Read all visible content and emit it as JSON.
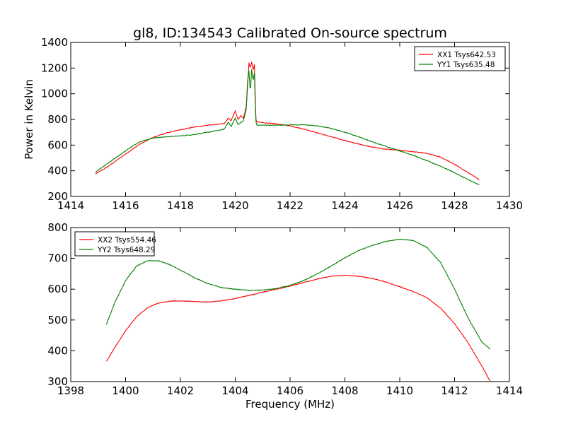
{
  "figure": {
    "title": "gl8, ID:134543 Calibrated On-source spectrum"
  },
  "chart_data": [
    {
      "type": "line",
      "title": "gl8, ID:134543 Calibrated On-source spectrum",
      "xlabel": "",
      "ylabel": "Power in Kelvin",
      "xlim": [
        1414,
        1430
      ],
      "ylim": [
        200,
        1400
      ],
      "xticks": [
        1414,
        1416,
        1418,
        1420,
        1422,
        1424,
        1426,
        1428,
        1430
      ],
      "yticks": [
        200,
        400,
        600,
        800,
        1000,
        1200,
        1400
      ],
      "grid": false,
      "legend_position": "top-right",
      "series": [
        {
          "name": "XX1 Tsys642.53",
          "color": "#ff0000",
          "x": [
            1414.9,
            1415.3,
            1415.7,
            1416.1,
            1416.5,
            1417.0,
            1417.5,
            1418.0,
            1418.5,
            1419.0,
            1419.4,
            1419.6,
            1419.75,
            1419.85,
            1420.0,
            1420.1,
            1420.2,
            1420.3,
            1420.4,
            1420.45,
            1420.5,
            1420.55,
            1420.6,
            1420.65,
            1420.7,
            1420.75,
            1420.8,
            1421.0,
            1421.5,
            1422.0,
            1422.5,
            1423.0,
            1423.5,
            1424.0,
            1424.5,
            1425.0,
            1425.5,
            1426.0,
            1426.5,
            1427.0,
            1427.5,
            1428.0,
            1428.5,
            1428.9
          ],
          "y": [
            375,
            425,
            485,
            545,
            605,
            660,
            695,
            720,
            740,
            755,
            762,
            768,
            810,
            790,
            865,
            800,
            830,
            810,
            900,
            1050,
            1240,
            1200,
            1250,
            1180,
            1230,
            800,
            780,
            775,
            765,
            750,
            725,
            695,
            665,
            635,
            608,
            585,
            568,
            560,
            548,
            535,
            505,
            450,
            385,
            330
          ]
        },
        {
          "name": "YY1 Tsys635.48",
          "color": "#008000",
          "x": [
            1414.9,
            1415.3,
            1415.7,
            1416.1,
            1416.5,
            1417.0,
            1417.5,
            1418.0,
            1418.5,
            1419.0,
            1419.4,
            1419.6,
            1419.75,
            1419.85,
            1420.0,
            1420.1,
            1420.2,
            1420.3,
            1420.4,
            1420.45,
            1420.5,
            1420.55,
            1420.6,
            1420.65,
            1420.7,
            1420.75,
            1420.8,
            1421.0,
            1421.5,
            1422.0,
            1422.5,
            1423.0,
            1423.5,
            1424.0,
            1424.5,
            1425.0,
            1425.5,
            1426.0,
            1426.5,
            1427.0,
            1427.5,
            1428.0,
            1428.5,
            1428.9
          ],
          "y": [
            390,
            450,
            510,
            570,
            625,
            655,
            665,
            672,
            682,
            700,
            715,
            725,
            780,
            745,
            810,
            760,
            775,
            790,
            880,
            1100,
            1180,
            1010,
            1190,
            1100,
            1160,
            780,
            755,
            755,
            755,
            758,
            758,
            750,
            730,
            700,
            665,
            625,
            590,
            555,
            520,
            478,
            435,
            385,
            330,
            290
          ]
        }
      ]
    },
    {
      "type": "line",
      "title": "",
      "xlabel": "Frequency (MHz)",
      "ylabel": "",
      "xlim": [
        1398,
        1414
      ],
      "ylim": [
        300,
        800
      ],
      "xticks": [
        1398,
        1400,
        1402,
        1404,
        1406,
        1408,
        1410,
        1412,
        1414
      ],
      "yticks": [
        300,
        400,
        500,
        600,
        700,
        800
      ],
      "grid": false,
      "legend_position": "top-left",
      "series": [
        {
          "name": "XX2 Tsys554.46",
          "color": "#ff0000",
          "x": [
            1399.3,
            1399.6,
            1400.0,
            1400.4,
            1400.8,
            1401.2,
            1401.6,
            1402.0,
            1402.5,
            1403.0,
            1403.5,
            1404.0,
            1404.5,
            1405.0,
            1405.5,
            1406.0,
            1406.5,
            1407.0,
            1407.5,
            1408.0,
            1408.5,
            1409.0,
            1409.5,
            1410.0,
            1410.5,
            1411.0,
            1411.5,
            1412.0,
            1412.5,
            1413.0,
            1413.3
          ],
          "y": [
            365,
            410,
            465,
            510,
            540,
            555,
            561,
            562,
            560,
            558,
            562,
            570,
            580,
            590,
            600,
            610,
            622,
            633,
            642,
            645,
            642,
            635,
            623,
            608,
            592,
            572,
            538,
            488,
            425,
            350,
            300
          ]
        },
        {
          "name": "YY2 Tsys648.29",
          "color": "#008000",
          "x": [
            1399.3,
            1399.6,
            1400.0,
            1400.4,
            1400.8,
            1401.2,
            1401.6,
            1402.0,
            1402.5,
            1403.0,
            1403.5,
            1404.0,
            1404.5,
            1405.0,
            1405.5,
            1406.0,
            1406.5,
            1407.0,
            1407.5,
            1408.0,
            1408.5,
            1409.0,
            1409.5,
            1410.0,
            1410.5,
            1411.0,
            1411.5,
            1412.0,
            1412.5,
            1413.0,
            1413.3
          ],
          "y": [
            485,
            555,
            628,
            675,
            692,
            692,
            680,
            662,
            638,
            618,
            605,
            600,
            596,
            597,
            602,
            612,
            628,
            650,
            675,
            702,
            725,
            742,
            755,
            762,
            758,
            735,
            685,
            600,
            505,
            428,
            405
          ]
        }
      ]
    }
  ]
}
